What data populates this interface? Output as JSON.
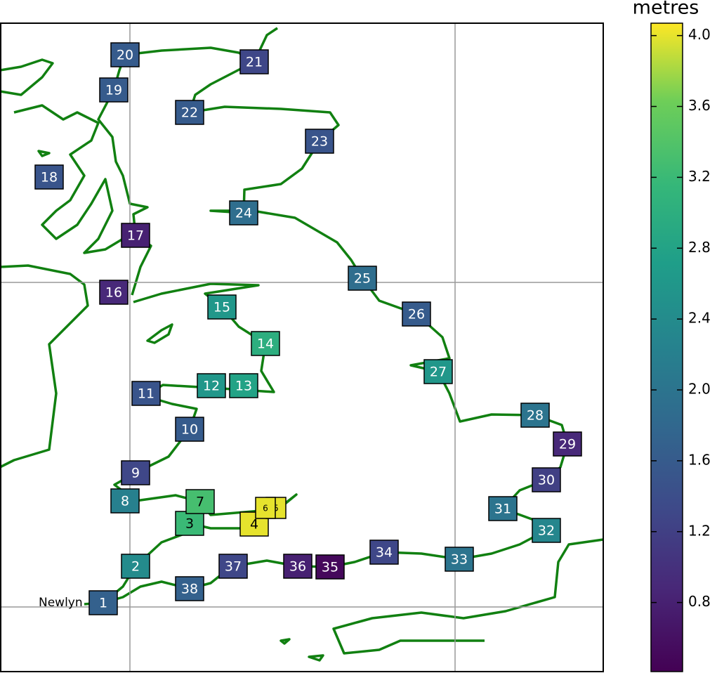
{
  "place_label": "Newlyn",
  "colorbar": {
    "label": "metres",
    "lim": [
      0.41,
      4.07
    ],
    "ticks": [
      0.8,
      1.2,
      1.6,
      {
        "value": 2,
        "label": "2.0"
      },
      2.4,
      2.8,
      3.2,
      3.6,
      {
        "value": 4,
        "label": "4.0"
      }
    ]
  },
  "stations": [
    {
      "label": "1",
      "value": 1.7
    },
    {
      "label": "2",
      "value": 2.4
    },
    {
      "label": "3",
      "value": 3.2
    },
    {
      "label": "4",
      "value": 4.0
    },
    {
      "label": "5",
      "value": 4.0
    },
    {
      "label": "6",
      "value": 4.0
    },
    {
      "label": "7",
      "value": 3.3
    },
    {
      "label": "8",
      "value": 2.2
    },
    {
      "label": "9",
      "value": 1.3
    },
    {
      "label": "10",
      "value": 1.6
    },
    {
      "label": "11",
      "value": 1.5
    },
    {
      "label": "12",
      "value": 2.6
    },
    {
      "label": "13",
      "value": 2.8
    },
    {
      "label": "14",
      "value": 3.0
    },
    {
      "label": "15",
      "value": 2.6
    },
    {
      "label": "16",
      "value": 0.9
    },
    {
      "label": "17",
      "value": 0.8
    },
    {
      "label": "18",
      "value": 1.5
    },
    {
      "label": "19",
      "value": 1.6
    },
    {
      "label": "20",
      "value": 1.6
    },
    {
      "label": "21",
      "value": 1.3
    },
    {
      "label": "22",
      "value": 1.6
    },
    {
      "label": "23",
      "value": 1.5
    },
    {
      "label": "24",
      "value": 1.9
    },
    {
      "label": "25",
      "value": 1.9
    },
    {
      "label": "26",
      "value": 1.6
    },
    {
      "label": "27",
      "value": 2.6
    },
    {
      "label": "28",
      "value": 2.0
    },
    {
      "label": "29",
      "value": 0.9
    },
    {
      "label": "30",
      "value": 1.2
    },
    {
      "label": "31",
      "value": 2.0
    },
    {
      "label": "32",
      "value": 2.3
    },
    {
      "label": "33",
      "value": 2.0
    },
    {
      "label": "34",
      "value": 1.3
    },
    {
      "label": "35",
      "value": 0.5
    },
    {
      "label": "36",
      "value": 0.8
    },
    {
      "label": "37",
      "value": 1.3
    },
    {
      "label": "38",
      "value": 1.7
    }
  ]
}
